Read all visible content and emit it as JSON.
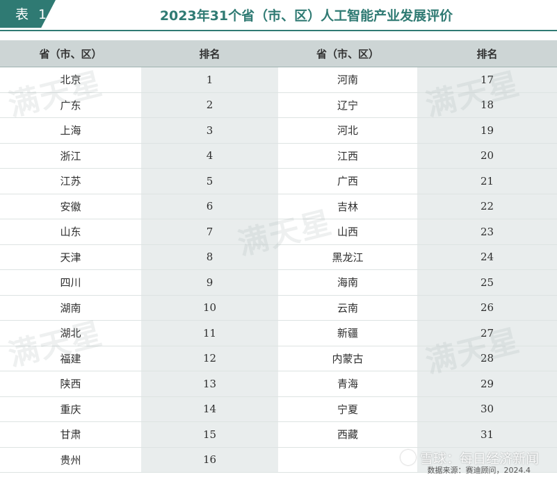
{
  "header": {
    "tag": "表 1",
    "title": "2023年31个省（市、区）人工智能产业发展评价"
  },
  "columns": {
    "province": "省（市、区）",
    "rank": "排名"
  },
  "left": [
    {
      "name": "北京",
      "rank": "1"
    },
    {
      "name": "广东",
      "rank": "2"
    },
    {
      "name": "上海",
      "rank": "3"
    },
    {
      "name": "浙江",
      "rank": "4"
    },
    {
      "name": "江苏",
      "rank": "5"
    },
    {
      "name": "安徽",
      "rank": "6"
    },
    {
      "name": "山东",
      "rank": "7"
    },
    {
      "name": "天津",
      "rank": "8"
    },
    {
      "name": "四川",
      "rank": "9"
    },
    {
      "name": "湖南",
      "rank": "10"
    },
    {
      "name": "湖北",
      "rank": "11"
    },
    {
      "name": "福建",
      "rank": "12"
    },
    {
      "name": "陕西",
      "rank": "13"
    },
    {
      "name": "重庆",
      "rank": "14"
    },
    {
      "name": "甘肃",
      "rank": "15"
    },
    {
      "name": "贵州",
      "rank": "16"
    }
  ],
  "right": [
    {
      "name": "河南",
      "rank": "17"
    },
    {
      "name": "辽宁",
      "rank": "18"
    },
    {
      "name": "河北",
      "rank": "19"
    },
    {
      "name": "江西",
      "rank": "20"
    },
    {
      "name": "广西",
      "rank": "21"
    },
    {
      "name": "吉林",
      "rank": "22"
    },
    {
      "name": "山西",
      "rank": "23"
    },
    {
      "name": "黑龙江",
      "rank": "24"
    },
    {
      "name": "海南",
      "rank": "25"
    },
    {
      "name": "云南",
      "rank": "26"
    },
    {
      "name": "新疆",
      "rank": "27"
    },
    {
      "name": "内蒙古",
      "rank": "28"
    },
    {
      "name": "青海",
      "rank": "29"
    },
    {
      "name": "宁夏",
      "rank": "30"
    },
    {
      "name": "西藏",
      "rank": "31"
    },
    {
      "name": "",
      "rank": ""
    }
  ],
  "watermark": "满天星",
  "footer": {
    "brand": "雪球：每日经济新闻",
    "source": "数据来源：赛迪顾问，2024.4"
  },
  "colors": {
    "accent": "#2f7a73",
    "header_bg": "#cdd5d5",
    "rank_bg": "#e9eded"
  }
}
